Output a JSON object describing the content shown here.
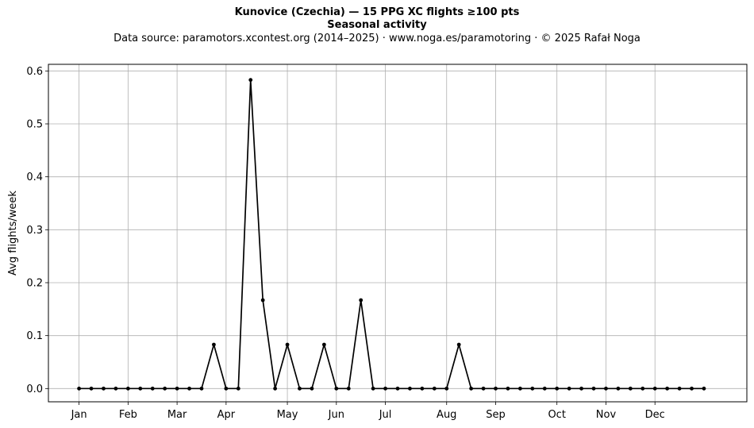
{
  "chart_data": {
    "type": "line",
    "title": "Kunovice (Czechia)  —  15 PPG XC flights ≥100 pts",
    "title_line2": "Seasonal activity",
    "subtitle": "Data source: paramotors.xcontest.org (2014–2025)  ·  www.noga.es/paramotoring  ·  © 2025 Rafał Noga",
    "xlabel": "",
    "ylabel": "Avg flights/week",
    "ylim": [
      -0.025,
      0.6125
    ],
    "xlim": [
      -2.5,
      54.5
    ],
    "grid": true,
    "line_color": "#000000",
    "x_ticks": [
      {
        "label": "Jan",
        "x": 0
      },
      {
        "label": "Feb",
        "x": 4
      },
      {
        "label": "Mar",
        "x": 8
      },
      {
        "label": "Apr",
        "x": 12
      },
      {
        "label": "May",
        "x": 17
      },
      {
        "label": "Jun",
        "x": 21
      },
      {
        "label": "Jul",
        "x": 25
      },
      {
        "label": "Aug",
        "x": 30
      },
      {
        "label": "Sep",
        "x": 34
      },
      {
        "label": "Oct",
        "x": 39
      },
      {
        "label": "Nov",
        "x": 43
      },
      {
        "label": "Dec",
        "x": 47
      }
    ],
    "y_ticks": [
      {
        "label": "0.0",
        "value": 0.0
      },
      {
        "label": "0.1",
        "value": 0.1
      },
      {
        "label": "0.2",
        "value": 0.2
      },
      {
        "label": "0.3",
        "value": 0.3
      },
      {
        "label": "0.4",
        "value": 0.4
      },
      {
        "label": "0.5",
        "value": 0.5
      },
      {
        "label": "0.6",
        "value": 0.6
      }
    ],
    "x": [
      0,
      1,
      2,
      3,
      4,
      5,
      6,
      7,
      8,
      9,
      10,
      11,
      12,
      13,
      14,
      15,
      16,
      17,
      18,
      19,
      20,
      21,
      22,
      23,
      24,
      25,
      26,
      27,
      28,
      29,
      30,
      31,
      32,
      33,
      34,
      35,
      36,
      37,
      38,
      39,
      40,
      41,
      42,
      43,
      44,
      45,
      46,
      47,
      48,
      49,
      50,
      51
    ],
    "values": [
      0,
      0,
      0,
      0,
      0,
      0,
      0,
      0,
      0,
      0,
      0,
      0.083,
      0,
      0,
      0.583,
      0.167,
      0,
      0.083,
      0,
      0,
      0.083,
      0,
      0,
      0.167,
      0,
      0,
      0,
      0,
      0,
      0,
      0,
      0.083,
      0,
      0,
      0,
      0,
      0,
      0,
      0,
      0,
      0,
      0,
      0,
      0,
      0,
      0,
      0,
      0,
      0,
      0,
      0,
      0
    ]
  }
}
